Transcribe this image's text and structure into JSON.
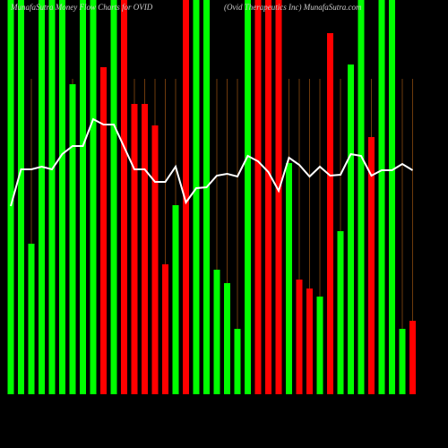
{
  "chart_data": {
    "type": "bar",
    "title": "MunafaSutra Money Flow Charts for OVID",
    "subtitle": "(Ovid Therapeutics Inc) MunafaSutra.com",
    "ylim": [
      0,
      440
    ],
    "series": [
      {
        "name": "Money flow",
        "colors": [
          "#00ff00",
          "#00ff00",
          "#00ff00",
          "#00ff00",
          "#00ff00",
          "#00ff00",
          "#00ff00",
          "#00ff00",
          "#00ff00",
          "#ff0000",
          "#00ff00",
          "#ff0000",
          "#ff0000",
          "#ff0000",
          "#ff0000",
          "#ff0000",
          "#00ff00",
          "#ff0000",
          "#00ff00",
          "#00ff00",
          "#00ff00",
          "#00ff00",
          "#00ff00",
          "#00ff00",
          "#ff0000",
          "#ff0000",
          "#ff0000",
          "#00ff00",
          "#ff0000",
          "#ff0000",
          "#00ff00",
          "#ff0000",
          "#00ff00",
          "#00ff00",
          "#00ff00",
          "#ff0000",
          "#00ff00",
          "#00ff00",
          "#00ff00",
          "#ff0000"
        ],
        "values": [
          440,
          440,
          168,
          440,
          440,
          440,
          346,
          440,
          440,
          365,
          440,
          440,
          324,
          324,
          300,
          145,
          211,
          440,
          440,
          440,
          139,
          124,
          73,
          440,
          440,
          440,
          440,
          258,
          128,
          118,
          109,
          403,
          182,
          368,
          440,
          287,
          440,
          440,
          73,
          82
        ]
      },
      {
        "name": "Price",
        "color": "#ffffff",
        "values": [
          210,
          251,
          251,
          254,
          251,
          268,
          277,
          277,
          307,
          301,
          301,
          276,
          251,
          251,
          237,
          237,
          254,
          214,
          230,
          231,
          244,
          246,
          243,
          266,
          260,
          248,
          227,
          264,
          256,
          243,
          254,
          244,
          245,
          268,
          266,
          244,
          250,
          250,
          257,
          250
        ]
      }
    ]
  }
}
